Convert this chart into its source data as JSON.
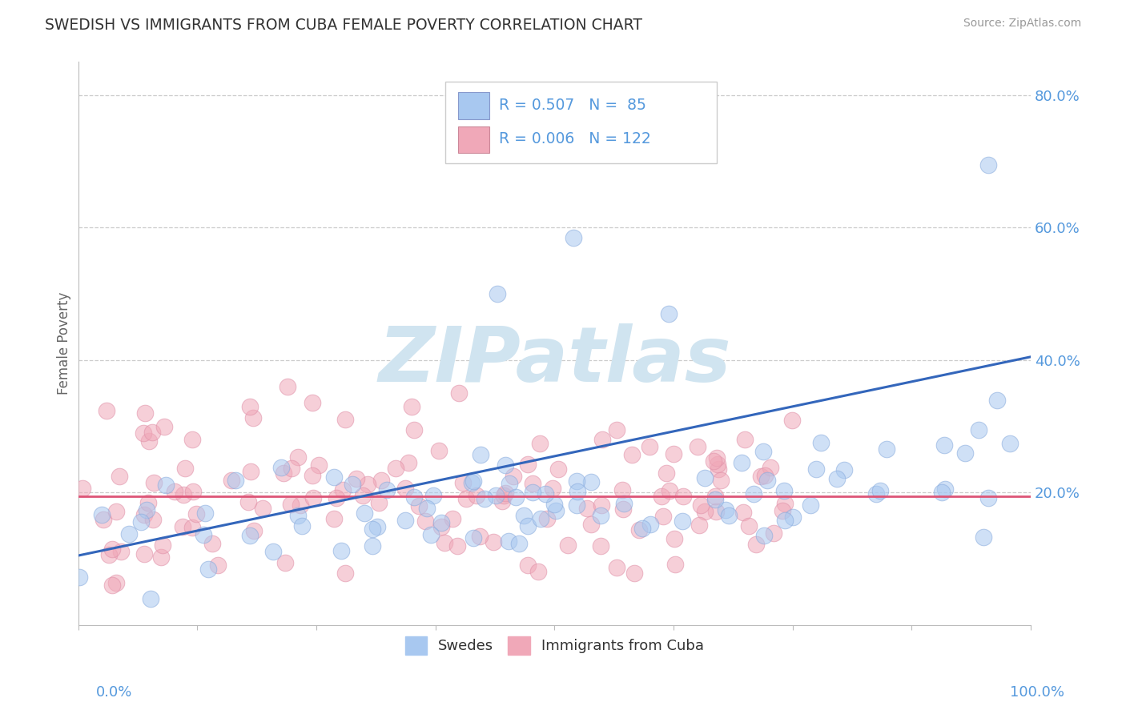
{
  "title": "SWEDISH VS IMMIGRANTS FROM CUBA FEMALE POVERTY CORRELATION CHART",
  "source_text": "Source: ZipAtlas.com",
  "ylabel": "Female Poverty",
  "legend_bottom_label1": "Swedes",
  "legend_bottom_label2": "Immigrants from Cuba",
  "R_swedes": 0.507,
  "N_swedes": 85,
  "R_cuba": 0.006,
  "N_cuba": 122,
  "swedes_color": "#a8c8f0",
  "cuba_color": "#f0a8b8",
  "swedes_line_color": "#3366bb",
  "cuba_line_color": "#dd5577",
  "title_color": "#333333",
  "watermark_color": "#d0e4f0",
  "tick_color": "#5599dd",
  "axis_color": "#bbbbbb",
  "grid_color": "#cccccc",
  "background_color": "#ffffff",
  "ylim_min": 0.0,
  "ylim_max": 0.85,
  "xlim_min": 0.0,
  "xlim_max": 1.0,
  "sw_line_x0": 0.0,
  "sw_line_x1": 1.0,
  "sw_line_y0": 0.105,
  "sw_line_y1": 0.405,
  "cu_line_x0": 0.0,
  "cu_line_x1": 1.0,
  "cu_line_y0": 0.195,
  "cu_line_y1": 0.195
}
